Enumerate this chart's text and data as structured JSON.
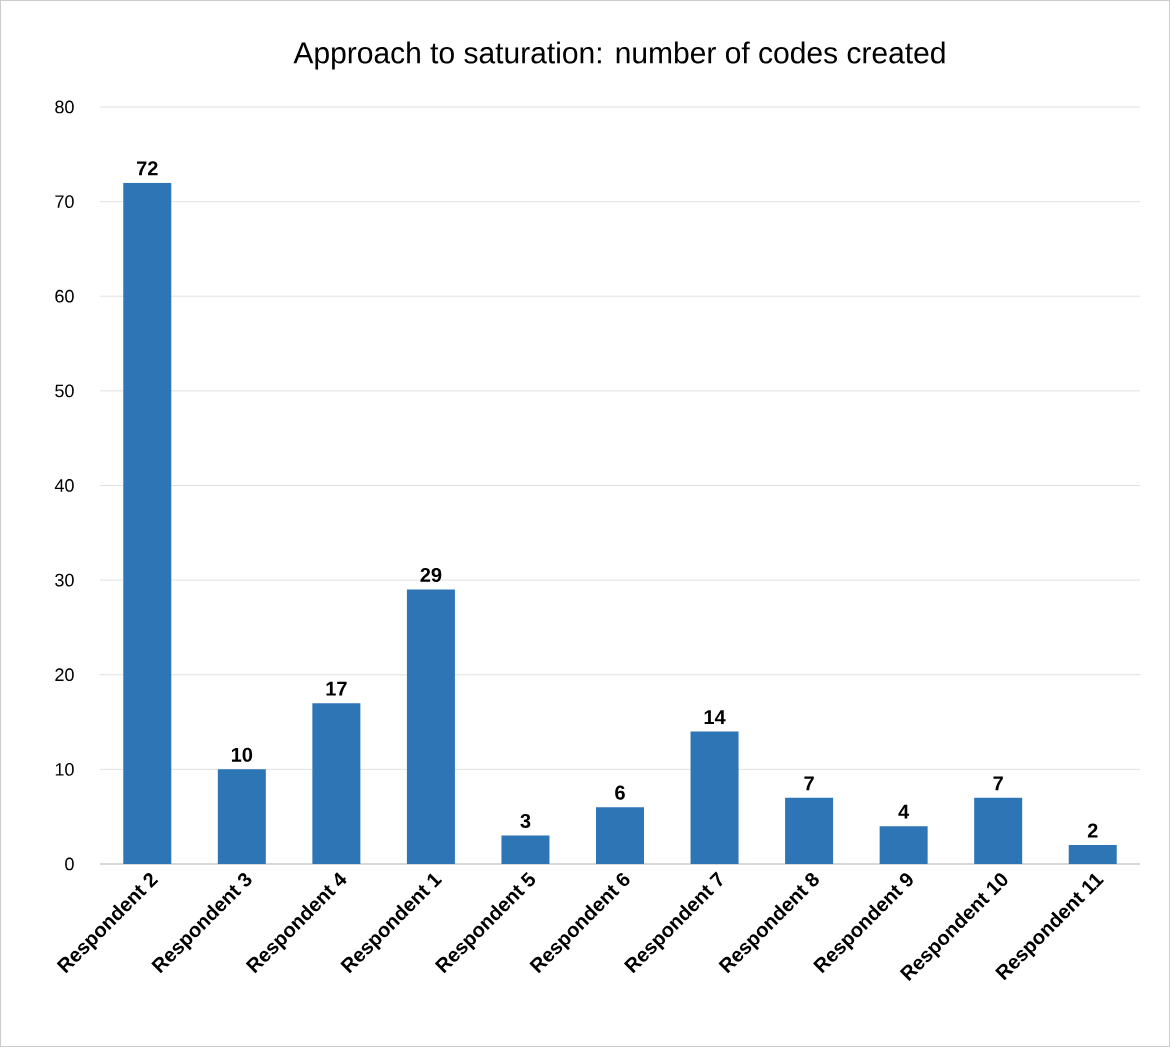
{
  "chart_data": {
    "type": "bar",
    "title": "Approach to saturation: number of codes created",
    "categories": [
      "Respondent 2",
      "Respondent 3",
      "Respondent 4",
      "Respondent 1",
      "Respondent 5",
      "Respondent 6",
      "Respondent 7",
      "Respondent 8",
      "Respondent 9",
      "Respondent 10",
      "Respondent 11"
    ],
    "values": [
      72,
      10,
      17,
      29,
      3,
      6,
      14,
      7,
      4,
      7,
      2
    ],
    "color": "#2e75b6",
    "ylim": [
      0,
      80
    ],
    "yticks": [
      0,
      10,
      20,
      30,
      40,
      50,
      60,
      70,
      80
    ],
    "grid": "y",
    "data_labels": true
  }
}
